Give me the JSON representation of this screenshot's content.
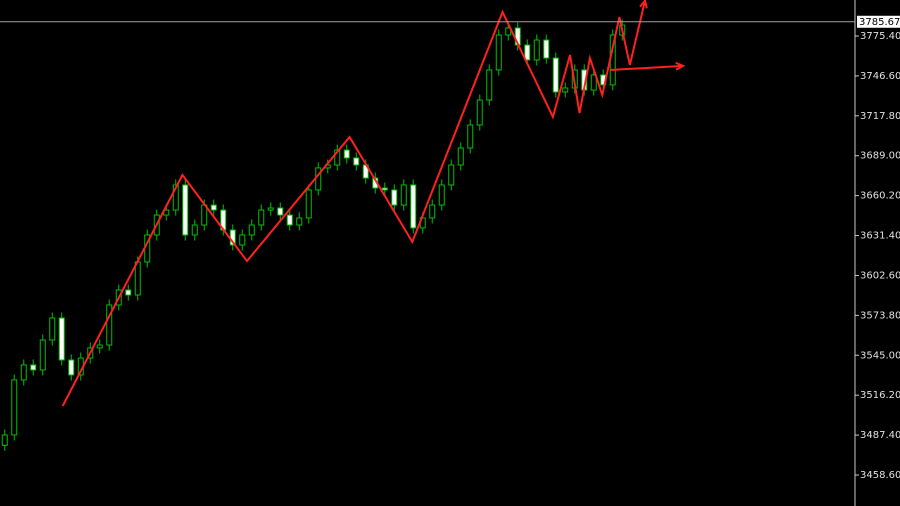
{
  "chart_data": {
    "type": "candlestick",
    "up_color": "#00c000",
    "down_color": "#ffffff",
    "wick_color": "#00c000",
    "open": [
      3480,
      3487.5,
      3527.2,
      3538,
      3534.4,
      3556,
      3571.9,
      3541.6,
      3530.8,
      3543,
      3550.3,
      3552.4,
      3581.3,
      3592.1,
      3588.5,
      3612.3,
      3631.8,
      3646.2,
      3649.8,
      3667.9,
      3631.8,
      3639,
      3653.4,
      3649.8,
      3635.4,
      3624.6,
      3631.8,
      3639,
      3649.8,
      3651.3,
      3646.2,
      3639,
      3644.1,
      3664.3,
      3680.2,
      3682.3,
      3693.1,
      3687.4,
      3682.3,
      3672.9,
      3665.7,
      3664.3,
      3653.4,
      3667.9,
      3636.9,
      3644.1,
      3653.4,
      3667.9,
      3682.3,
      3694.6,
      3711.2,
      3729.2,
      3750.9,
      3776.1,
      3781.2,
      3768.9,
      3758.1,
      3772.5,
      3759.5,
      3735,
      3737.9,
      3750.9,
      3736.4,
      3747.3,
      3740.1,
      3776.1
    ],
    "high": [
      3491.5,
      3531.2,
      3542,
      3542,
      3560,
      3575.9,
      3575.9,
      3545.6,
      3547,
      3554.3,
      3556.4,
      3585.3,
      3596.1,
      3596.1,
      3616.3,
      3635.8,
      3650.2,
      3653.8,
      3671.9,
      3671.9,
      3643,
      3657.4,
      3657.4,
      3653.8,
      3639.4,
      3635.8,
      3643,
      3653.8,
      3655.3,
      3655.3,
      3650.2,
      3648.1,
      3668.3,
      3684.2,
      3686.3,
      3697.1,
      3697.1,
      3691.4,
      3686.3,
      3676.9,
      3669.7,
      3668.3,
      3671.9,
      3671.9,
      3648.1,
      3657.4,
      3671.9,
      3686.3,
      3698.6,
      3715.2,
      3733.2,
      3754.9,
      3780.1,
      3785.2,
      3785.2,
      3772.9,
      3776.5,
      3776.5,
      3763.5,
      3741.9,
      3754.9,
      3754.9,
      3751.3,
      3751.3,
      3780.1,
      3787.3
    ],
    "low": [
      3476,
      3483.5,
      3523.2,
      3530.4,
      3530.4,
      3552,
      3537.6,
      3526.8,
      3526.8,
      3539,
      3546.3,
      3548.4,
      3577.3,
      3584.5,
      3584.5,
      3608.3,
      3627.8,
      3642.2,
      3645.8,
      3627.8,
      3627.8,
      3635,
      3645.8,
      3631.4,
      3620.6,
      3620.6,
      3627.8,
      3635,
      3645.8,
      3642.2,
      3635,
      3635,
      3640.1,
      3660.3,
      3676.2,
      3678.3,
      3683.4,
      3678.3,
      3668.9,
      3661.7,
      3660.3,
      3649.4,
      3649.4,
      3632.9,
      3632.9,
      3640.1,
      3649.4,
      3663.9,
      3678.3,
      3690.6,
      3707.2,
      3725.2,
      3746.9,
      3772.1,
      3764.9,
      3754.1,
      3754.1,
      3755.5,
      3731,
      3731,
      3733.9,
      3732.4,
      3732.4,
      3736.1,
      3736.1,
      3772.1
    ],
    "close": [
      3487.5,
      3527.2,
      3538,
      3534.4,
      3556,
      3571.9,
      3541.6,
      3530.8,
      3543,
      3550.3,
      3552.4,
      3581.3,
      3592.1,
      3588.5,
      3612.3,
      3631.8,
      3646.2,
      3649.8,
      3667.9,
      3631.8,
      3639,
      3653.4,
      3649.8,
      3635.4,
      3624.6,
      3631.8,
      3639,
      3649.8,
      3651.3,
      3646.2,
      3639,
      3644.1,
      3664.3,
      3680.2,
      3682.3,
      3693.1,
      3687.4,
      3682.3,
      3672.9,
      3665.7,
      3664.3,
      3653.4,
      3667.9,
      3636.9,
      3644.1,
      3653.4,
      3667.9,
      3682.3,
      3694.6,
      3711.2,
      3729.2,
      3750.9,
      3776.1,
      3781.2,
      3768.9,
      3758.1,
      3772.5,
      3759.5,
      3735,
      3737.9,
      3750.9,
      3736.4,
      3747.3,
      3740.1,
      3776.1,
      3783.3
    ],
    "current_price": 3785.67,
    "xlim": [
      -0.5,
      89.5
    ],
    "ylim": [
      3436.23,
      3801.38
    ],
    "yticks": [
      {
        "value": 3458.6,
        "label": "3458.60"
      },
      {
        "value": 3487.4,
        "label": "3487.40"
      },
      {
        "value": 3516.2,
        "label": "3516.20"
      },
      {
        "value": 3545,
        "label": "3545.00"
      },
      {
        "value": 3573.8,
        "label": "3573.80"
      },
      {
        "value": 3602.6,
        "label": "3602.60"
      },
      {
        "value": 3631.4,
        "label": "3631.40"
      },
      {
        "value": 3660.2,
        "label": "3660.20"
      },
      {
        "value": 3689,
        "label": "3689.00"
      },
      {
        "value": 3717.8,
        "label": "3717.80"
      },
      {
        "value": 3746.6,
        "label": "3746.60"
      },
      {
        "value": 3775.4,
        "label": "3775.40"
      }
    ],
    "annotations": [
      {
        "color": "#ff2020",
        "x": [
          6.1,
          18.7,
          25.5,
          36.3,
          42.9,
          52.4,
          57.7,
          59.5,
          60.5,
          61.6,
          62.9,
          64.7,
          65.8,
          67.4
        ],
        "y": [
          3508.4,
          3675.1,
          3613.0,
          3702.5,
          3626.8,
          3792.7,
          3717.0,
          3761.7,
          3719.8,
          3759.5,
          3732.8,
          3789.1,
          3754.5,
          3801.0
        ]
      },
      {
        "color": "#ff2020",
        "x": [
          63.7,
          71.4
        ],
        "y": [
          3750.9,
          3753.8
        ]
      }
    ]
  }
}
